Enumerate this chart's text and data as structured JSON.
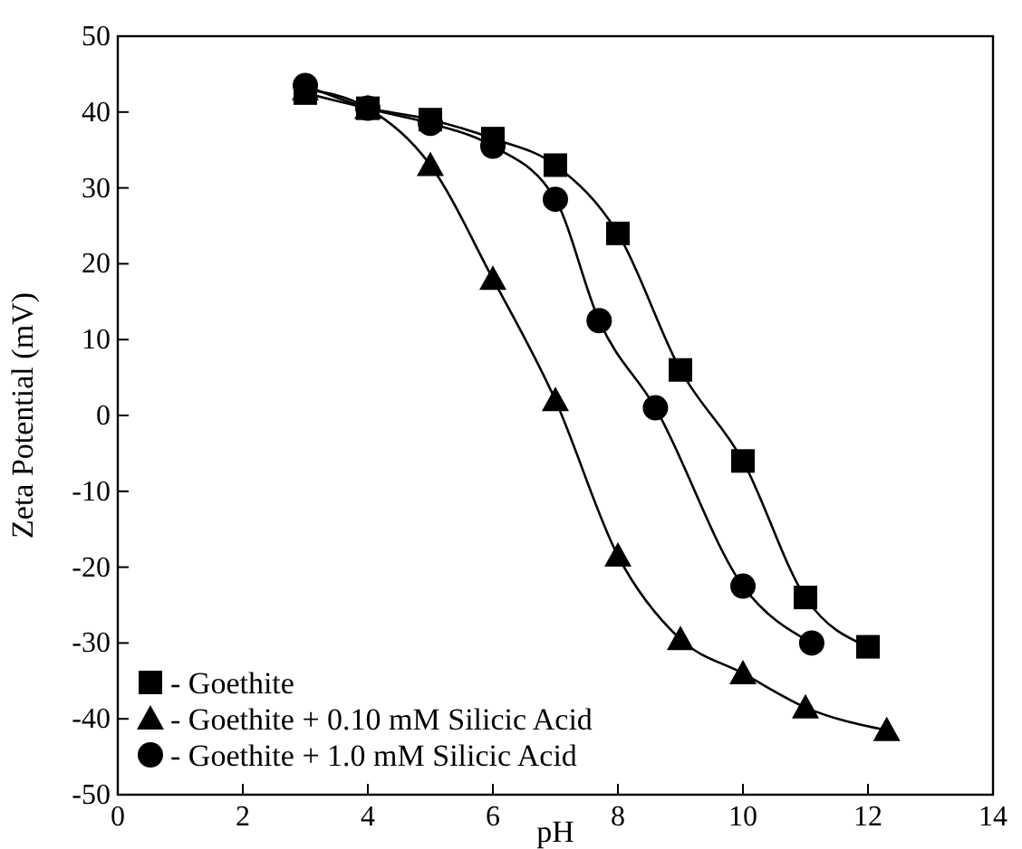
{
  "chart_data": {
    "type": "line",
    "xlabel": "pH",
    "ylabel": "Zeta Potential (mV)",
    "xlim": [
      0,
      14
    ],
    "xticks": [
      0,
      2,
      4,
      6,
      8,
      10,
      12,
      14
    ],
    "ylim": [
      -50,
      50
    ],
    "yticks": [
      -50,
      -40,
      -30,
      -20,
      -10,
      0,
      10,
      20,
      30,
      40,
      50
    ],
    "legend": "bottom left",
    "grid": false,
    "line_style": "solid",
    "series": [
      {
        "name": "- Goethite",
        "color": "#000000",
        "marker": "square",
        "x": [
          3,
          4,
          5,
          6,
          7,
          8,
          9,
          10,
          11,
          12
        ],
        "values": [
          42.5,
          40.5,
          39,
          36.5,
          33,
          24,
          6,
          -6,
          -24,
          -30.5
        ]
      },
      {
        "name": "- Goethite + 0.10 mM Silicic Acid",
        "color": "#000000",
        "marker": "triangle",
        "x": [
          3,
          4,
          5,
          6,
          7,
          8,
          9,
          10,
          11,
          12.3
        ],
        "values": [
          43,
          40.5,
          33,
          18,
          2,
          -18.5,
          -29.5,
          -34,
          -38.5,
          -41.5
        ]
      },
      {
        "name": "- Goethite + 1.0 mM Silicic Acid",
        "color": "#000000",
        "marker": "circle",
        "x": [
          3,
          4,
          5,
          6,
          7,
          7.7,
          8.6,
          10,
          11.1
        ],
        "values": [
          43.5,
          40.5,
          38.5,
          35.5,
          28.5,
          12.5,
          1,
          -22.5,
          -30
        ]
      }
    ]
  }
}
